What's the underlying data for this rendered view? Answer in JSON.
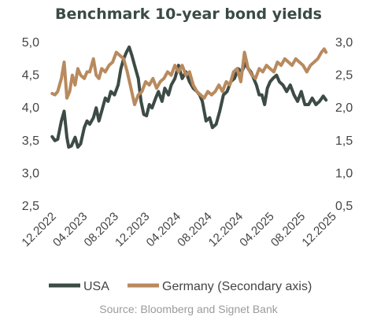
{
  "chart_data": {
    "type": "line",
    "title": "Benchmark 10-year bond yields",
    "source": "Source: Bloomberg and Signet Bank",
    "x_ticks": [
      "12.2022",
      "04.2023",
      "08.2023",
      "12.2023",
      "04.2024",
      "08.2024",
      "12.2024",
      "04.2025",
      "08.2025",
      "12.2025"
    ],
    "y_left": {
      "ticks": [
        "5,0",
        "4,5",
        "4,0",
        "3,5",
        "3,0",
        "2,5"
      ],
      "range": [
        2.5,
        5.0
      ]
    },
    "y_right": {
      "ticks": [
        "3,0",
        "2,5",
        "2,0",
        "1,5",
        "1,0",
        "0,5"
      ],
      "range": [
        0.5,
        3.0
      ]
    },
    "x_range": [
      2022.917,
      2025.917
    ],
    "series": [
      {
        "name": "USA",
        "axis": "left",
        "color": "#3d4b45",
        "x": [
          2022.92,
          2022.95,
          2022.98,
          2023.02,
          2023.05,
          2023.08,
          2023.1,
          2023.13,
          2023.17,
          2023.2,
          2023.23,
          2023.27,
          2023.3,
          2023.33,
          2023.37,
          2023.4,
          2023.43,
          2023.46,
          2023.5,
          2023.53,
          2023.56,
          2023.6,
          2023.64,
          2023.67,
          2023.7,
          2023.73,
          2023.76,
          2023.79,
          2023.82,
          2023.86,
          2023.89,
          2023.92,
          2023.95,
          2023.98,
          2024.01,
          2024.05,
          2024.08,
          2024.12,
          2024.15,
          2024.19,
          2024.22,
          2024.26,
          2024.3,
          2024.34,
          2024.38,
          2024.42,
          2024.46,
          2024.5,
          2024.53,
          2024.56,
          2024.6,
          2024.64,
          2024.67,
          2024.71,
          2024.75,
          2024.79,
          2024.83,
          2024.87,
          2024.91,
          2024.95,
          2024.99,
          2025.03,
          2025.06,
          2025.09,
          2025.12,
          2025.15,
          2025.18,
          2025.21,
          2025.24,
          2025.27,
          2025.3,
          2025.33,
          2025.37,
          2025.4,
          2025.44,
          2025.48,
          2025.52,
          2025.56,
          2025.6,
          2025.64,
          2025.68,
          2025.72,
          2025.76,
          2025.8,
          2025.84,
          2025.88,
          2025.91
        ],
        "values": [
          3.56,
          3.5,
          3.52,
          3.8,
          3.95,
          3.55,
          3.4,
          3.42,
          3.55,
          3.4,
          3.45,
          3.7,
          3.8,
          3.75,
          3.85,
          4.0,
          3.8,
          3.95,
          4.15,
          4.1,
          4.25,
          4.2,
          4.35,
          4.6,
          4.75,
          4.85,
          4.93,
          4.8,
          4.65,
          4.45,
          4.1,
          3.9,
          3.88,
          4.05,
          4.0,
          4.15,
          4.25,
          4.1,
          4.3,
          4.2,
          4.35,
          4.45,
          4.65,
          4.45,
          4.55,
          4.4,
          4.3,
          4.25,
          4.2,
          4.1,
          3.8,
          3.85,
          3.7,
          3.75,
          3.95,
          4.2,
          4.25,
          4.4,
          4.45,
          4.6,
          4.55,
          4.68,
          4.6,
          4.55,
          4.45,
          4.35,
          4.2,
          4.2,
          4.05,
          4.3,
          4.4,
          4.45,
          4.5,
          4.4,
          4.35,
          4.25,
          4.35,
          4.2,
          4.1,
          4.25,
          4.05,
          4.05,
          4.15,
          4.05,
          4.1,
          4.18,
          4.12
        ]
      },
      {
        "name": "Germany (Secondary axis)",
        "axis": "right",
        "color": "#b88a5e",
        "x": [
          2022.92,
          2022.95,
          2022.98,
          2023.02,
          2023.05,
          2023.08,
          2023.11,
          2023.14,
          2023.17,
          2023.2,
          2023.23,
          2023.27,
          2023.3,
          2023.33,
          2023.37,
          2023.4,
          2023.43,
          2023.46,
          2023.5,
          2023.54,
          2023.58,
          2023.62,
          2023.66,
          2023.7,
          2023.74,
          2023.78,
          2023.82,
          2023.86,
          2023.9,
          2023.94,
          2023.98,
          2024.02,
          2024.06,
          2024.1,
          2024.14,
          2024.18,
          2024.22,
          2024.26,
          2024.3,
          2024.34,
          2024.38,
          2024.42,
          2024.46,
          2024.5,
          2024.54,
          2024.58,
          2024.62,
          2024.66,
          2024.7,
          2024.74,
          2024.78,
          2024.82,
          2024.86,
          2024.9,
          2024.94,
          2024.98,
          2025.02,
          2025.06,
          2025.1,
          2025.14,
          2025.18,
          2025.22,
          2025.26,
          2025.3,
          2025.34,
          2025.38,
          2025.42,
          2025.46,
          2025.5,
          2025.54,
          2025.58,
          2025.62,
          2025.66,
          2025.7,
          2025.74,
          2025.78,
          2025.82,
          2025.86,
          2025.89,
          2025.91
        ],
        "values": [
          2.22,
          2.2,
          2.25,
          2.45,
          2.7,
          2.15,
          2.25,
          2.5,
          2.35,
          2.6,
          2.5,
          2.45,
          2.55,
          2.55,
          2.75,
          2.5,
          2.45,
          2.6,
          2.55,
          2.65,
          2.7,
          2.85,
          2.8,
          2.75,
          2.55,
          2.3,
          2.05,
          2.2,
          2.25,
          2.4,
          2.35,
          2.45,
          2.3,
          2.4,
          2.45,
          2.55,
          2.5,
          2.65,
          2.55,
          2.65,
          2.5,
          2.55,
          2.35,
          2.25,
          2.2,
          2.15,
          2.25,
          2.2,
          2.25,
          2.35,
          2.25,
          2.4,
          2.35,
          2.55,
          2.6,
          2.4,
          2.85,
          2.6,
          2.5,
          2.45,
          2.6,
          2.55,
          2.65,
          2.6,
          2.55,
          2.7,
          2.65,
          2.75,
          2.7,
          2.65,
          2.75,
          2.7,
          2.65,
          2.55,
          2.65,
          2.7,
          2.75,
          2.85,
          2.9,
          2.85
        ]
      }
    ],
    "legend_position": "bottom",
    "grid": false
  }
}
